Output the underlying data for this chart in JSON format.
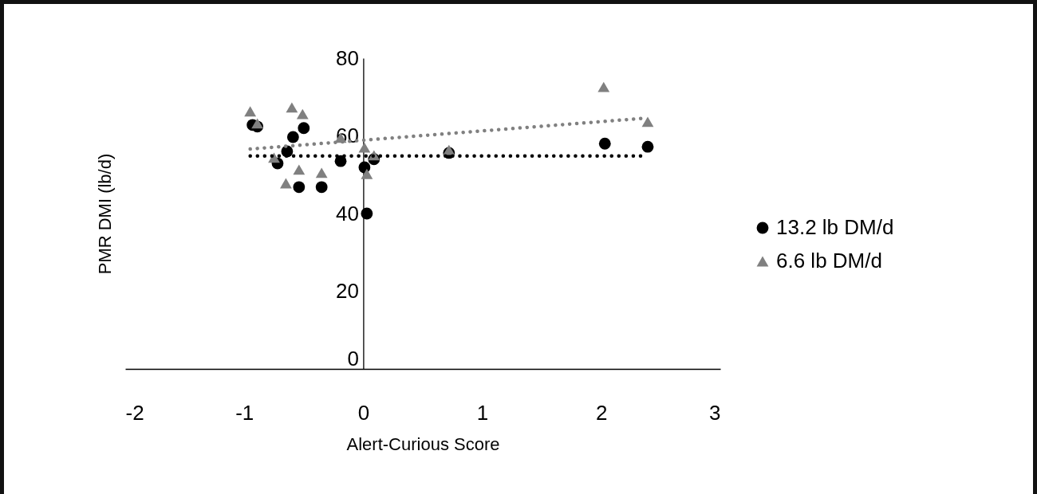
{
  "chart_data": {
    "type": "scatter",
    "xlabel": "Alert-Curious Score",
    "ylabel": "PMR DMI (lb/d)",
    "xlim": [
      -2,
      3
    ],
    "xticks": [
      -2,
      -1,
      0,
      1,
      2,
      3
    ],
    "ylim": [
      0,
      80
    ],
    "yticks": [
      0,
      20,
      40,
      60,
      80
    ],
    "grid": false,
    "legend": "right",
    "series": [
      {
        "name": "13.2 lb DM/d",
        "color": "#000000",
        "marker": "circle",
        "x": [
          -0.93,
          -0.89,
          -0.5,
          -0.59,
          -0.64,
          -0.72,
          -0.54,
          -0.35,
          -0.19,
          0.01,
          0.09,
          0.03,
          0.72,
          2.03,
          2.39
        ],
        "values": [
          62.8,
          62.4,
          62.0,
          59.7,
          56.0,
          52.9,
          46.8,
          46.8,
          53.5,
          51.9,
          54.0,
          40.0,
          55.6,
          58.0,
          57.2
        ]
      },
      {
        "name": "6.6 lb DM/d",
        "color": "#808080",
        "marker": "triangle",
        "x": [
          -0.95,
          -0.89,
          -0.6,
          -0.51,
          -0.75,
          -0.54,
          -0.65,
          -0.35,
          -0.19,
          0.01,
          0.09,
          0.03,
          0.72,
          2.02,
          2.39
        ],
        "values": [
          66.3,
          63.2,
          67.3,
          65.6,
          54.4,
          51.3,
          47.8,
          50.5,
          59.5,
          57.0,
          55.0,
          50.2,
          56.4,
          72.6,
          63.6
        ]
      },
      {
        "type": "line",
        "line_style": "dotted",
        "color": "#000000",
        "x": [
          -0.95,
          2.39
        ],
        "values": [
          54.8,
          54.8
        ]
      },
      {
        "type": "line",
        "line_style": "dotted",
        "color": "#808080",
        "x": [
          -0.95,
          2.39
        ],
        "values": [
          56.6,
          64.6
        ]
      }
    ]
  }
}
